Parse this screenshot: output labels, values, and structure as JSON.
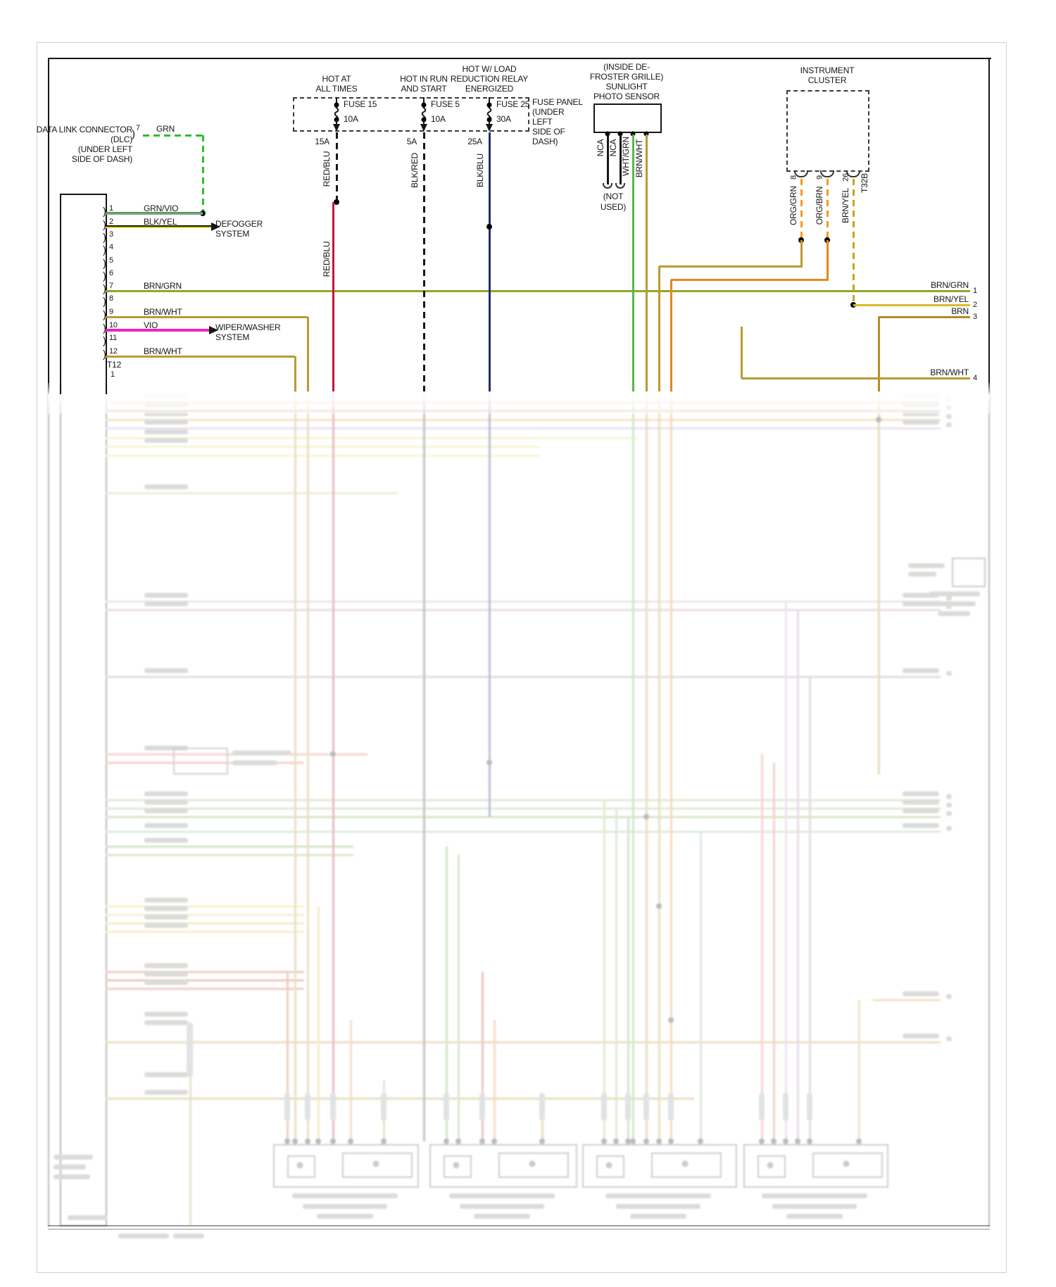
{
  "colors": {
    "green": "#2ebe2e",
    "green_violet": "#4aa53a",
    "violet_gray": "#9099a8",
    "black": "#161616",
    "yellow": "#e5d400",
    "brown_green": "#97a42d",
    "brown_white": "#b79b33",
    "violet": "#ea25c8",
    "red_blue": "#c21840",
    "black_blue": "#232f6f",
    "white_green": "#5ab84a",
    "orange": "#f59a1e",
    "orange_green_solid": "#bb9c2b",
    "orange_brown_solid": "#e2881c",
    "brown_yellow_dash": "#c2a81e",
    "brown_yellow_solid": "#d5bc2c",
    "brown": "#b08d26"
  },
  "dlc": {
    "title_lines": [
      "DATA LINK CONNECTOR",
      "(DLC)",
      "(UNDER LEFT",
      "SIDE OF DASH)"
    ],
    "pin": "7",
    "wire": "GRN",
    "bracket": ")"
  },
  "left_connector": {
    "id": "T12",
    "below_id_pin": "1",
    "pin_numbers": [
      "1",
      "2",
      "3",
      "4",
      "5",
      "6",
      "7",
      "8",
      "9",
      "10",
      "11",
      "12"
    ],
    "bracket": ")",
    "pins": {
      "1": "GRN/VIO",
      "2": "BLK/YEL",
      "7": "BRN/GRN",
      "9": "BRN/WHT",
      "10": "VIO",
      "12": "BRN/WHT"
    }
  },
  "targets": {
    "defogger_lines": [
      "DEFOGGER",
      "SYSTEM"
    ],
    "wiper_lines": [
      "WIPER/WASHER",
      "SYSTEM"
    ]
  },
  "fuse_panel": {
    "note_lines": [
      "FUSE PANEL",
      "(UNDER",
      "LEFT",
      "SIDE OF",
      "DASH)"
    ],
    "fuses": [
      {
        "header_lines": [
          "HOT AT",
          "ALL TIMES"
        ],
        "label": "FUSE 15",
        "amps": "10A",
        "circuit": "15A",
        "wire": "RED/BLU"
      },
      {
        "header_lines": [
          "HOT IN RUN",
          "AND START"
        ],
        "label": "FUSE 5",
        "amps": "10A",
        "circuit": "5A",
        "wire": "BLK/RED"
      },
      {
        "header_lines": [
          "HOT W/ LOAD",
          "REDUCTION RELAY",
          "ENERGIZED"
        ],
        "label": "FUSE 25",
        "amps": "30A",
        "circuit": "25A",
        "wire": "BLK/BLU"
      }
    ]
  },
  "photo_sensor": {
    "title_lines": [
      "(INSIDE DE-",
      "FROSTER GRILLE)",
      "SUNLIGHT",
      "PHOTO SENSOR"
    ],
    "pin_wires": [
      "NCA",
      "NCA",
      "WHT/GRN",
      "BRN/WHT"
    ],
    "not_used_lines": [
      "(NOT",
      "USED)"
    ]
  },
  "instrument_cluster": {
    "title_lines": [
      "INSTRUMENT",
      "CLUSTER"
    ],
    "connector_id": "T32B",
    "pins": [
      {
        "number": "8",
        "wire": "ORG/GRN"
      },
      {
        "number": "9",
        "wire": "ORG/BRN"
      },
      {
        "number": "26",
        "wire": "BRN/YEL"
      }
    ]
  },
  "right_edge_pins": [
    {
      "number": "1",
      "wire": "BRN/GRN"
    },
    {
      "number": "2",
      "wire": "BRN/YEL"
    },
    {
      "number": "3",
      "wire": "BRN"
    },
    {
      "number": "4",
      "wire": "BRN/WHT"
    }
  ]
}
